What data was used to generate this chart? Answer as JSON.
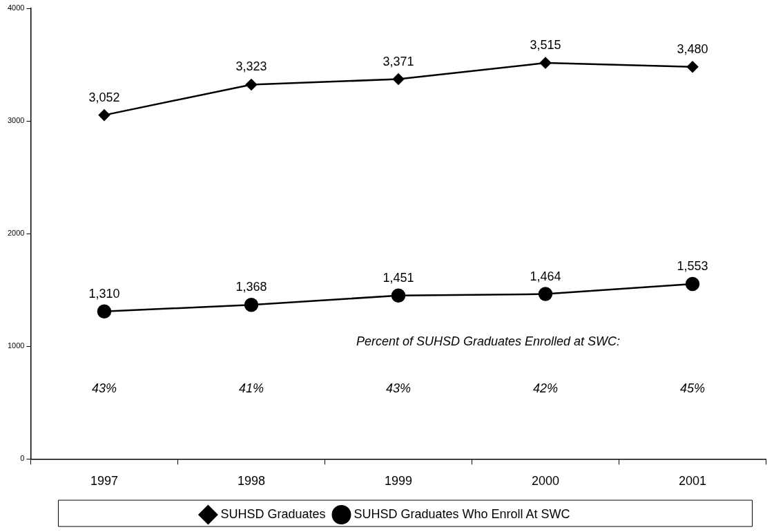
{
  "chart_data": {
    "type": "line",
    "categories": [
      "1997",
      "1998",
      "1999",
      "2000",
      "2001"
    ],
    "series": [
      {
        "name": "SUHSD Graduates",
        "color": "#000000",
        "marker": "diamond",
        "values": [
          3052,
          3323,
          3371,
          3515,
          3480
        ],
        "value_labels": [
          "3,052",
          "3,323",
          "3,371",
          "3,515",
          "3,480"
        ]
      },
      {
        "name": "SUHSD Graduates Who Enroll At SWC",
        "color": "#000000",
        "marker": "circle",
        "values": [
          1310,
          1368,
          1451,
          1464,
          1553
        ],
        "value_labels": [
          "1,310",
          "1,368",
          "1,451",
          "1,464",
          "1,553"
        ]
      }
    ],
    "ylim": [
      0,
      4000
    ],
    "yticks": [
      0,
      1000,
      2000,
      3000,
      4000
    ],
    "grid": false,
    "legend": "bottom",
    "line_style": "solid",
    "annotations": [
      "Percent of SUHSD Graduates Enrolled at SWC:",
      "43%",
      "41%",
      "43%",
      "42%",
      "45%"
    ]
  }
}
